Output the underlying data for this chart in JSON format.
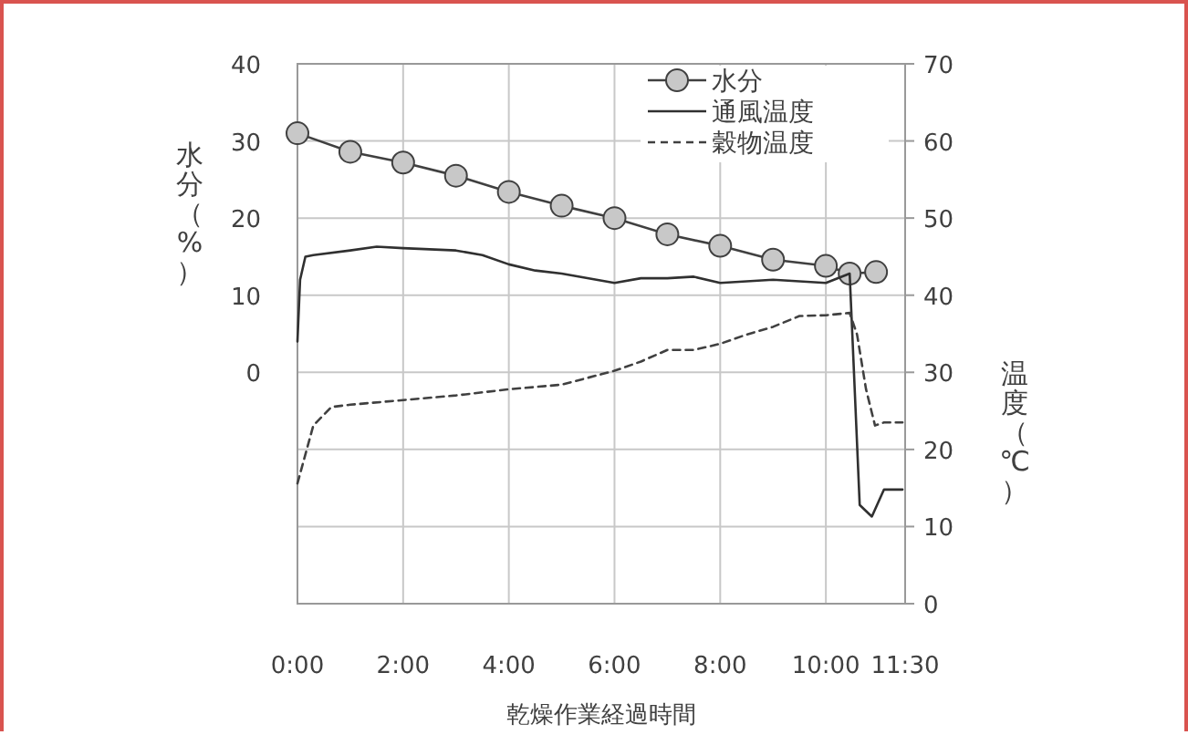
{
  "chart_data": {
    "type": "line",
    "xlabel": "乾燥作業経過時間",
    "ylabel": "水分（%）",
    "y2label": "温度（℃）",
    "xlim": [
      0,
      11.5
    ],
    "xticks": [
      {
        "value": 0,
        "label": "0:00"
      },
      {
        "value": 2,
        "label": "2:00"
      },
      {
        "value": 4,
        "label": "4:00"
      },
      {
        "value": 6,
        "label": "6:00"
      },
      {
        "value": 8,
        "label": "8:00"
      },
      {
        "value": 10,
        "label": "10:00"
      },
      {
        "value": 11.5,
        "label": "11:30"
      }
    ],
    "ylim": [
      -30,
      40
    ],
    "yticks": [
      0,
      10,
      20,
      30,
      40
    ],
    "y2lim": [
      0,
      70
    ],
    "y2ticks": [
      0,
      10,
      20,
      30,
      40,
      50,
      60,
      70
    ],
    "grid": true,
    "legend": "top right",
    "series": [
      {
        "name": "水分",
        "color": "#404040",
        "marker": "circle",
        "line_style": "solid",
        "x": [
          0,
          1,
          2,
          3,
          4,
          5,
          6,
          7,
          8,
          9,
          10,
          10.45,
          10.95
        ],
        "values": [
          31.0,
          28.6,
          27.2,
          25.5,
          23.4,
          21.6,
          20.0,
          17.9,
          16.4,
          14.6,
          13.8,
          12.8,
          13.0
        ]
      },
      {
        "name": "通風温度",
        "color": "#303030",
        "axis": "y2",
        "marker": "none",
        "line_style": "solid",
        "x": [
          0,
          0.05,
          0.15,
          0.3,
          1,
          1.5,
          2,
          3,
          3.5,
          4,
          4.5,
          5,
          6,
          6.5,
          7,
          7.5,
          8,
          9,
          10,
          10.45,
          10.5,
          10.64,
          10.87,
          11.1,
          11.45
        ],
        "values": [
          34,
          42,
          45,
          45.2,
          45.8,
          46.3,
          46.1,
          45.8,
          45.2,
          44.0,
          43.2,
          42.8,
          41.6,
          42.2,
          42.2,
          42.4,
          41.6,
          42.0,
          41.6,
          42.8,
          35,
          12.8,
          11.3,
          14.8,
          14.8
        ]
      },
      {
        "name": "穀物温度",
        "color": "#404040",
        "axis": "y2",
        "marker": "none",
        "line_style": "dashed",
        "x": [
          0,
          0.3,
          0.64,
          1,
          2,
          3,
          4,
          5,
          6,
          6.5,
          7,
          7.5,
          8,
          8.5,
          9,
          9.5,
          10,
          10.45,
          10.59,
          10.76,
          10.93,
          11.1,
          11.45
        ],
        "values": [
          15.6,
          23.1,
          25.5,
          25.8,
          26.4,
          27.0,
          27.8,
          28.4,
          30.2,
          31.4,
          32.9,
          32.9,
          33.7,
          34.9,
          35.9,
          37.3,
          37.4,
          37.7,
          34.9,
          27.8,
          23.1,
          23.5,
          23.5
        ]
      }
    ]
  }
}
